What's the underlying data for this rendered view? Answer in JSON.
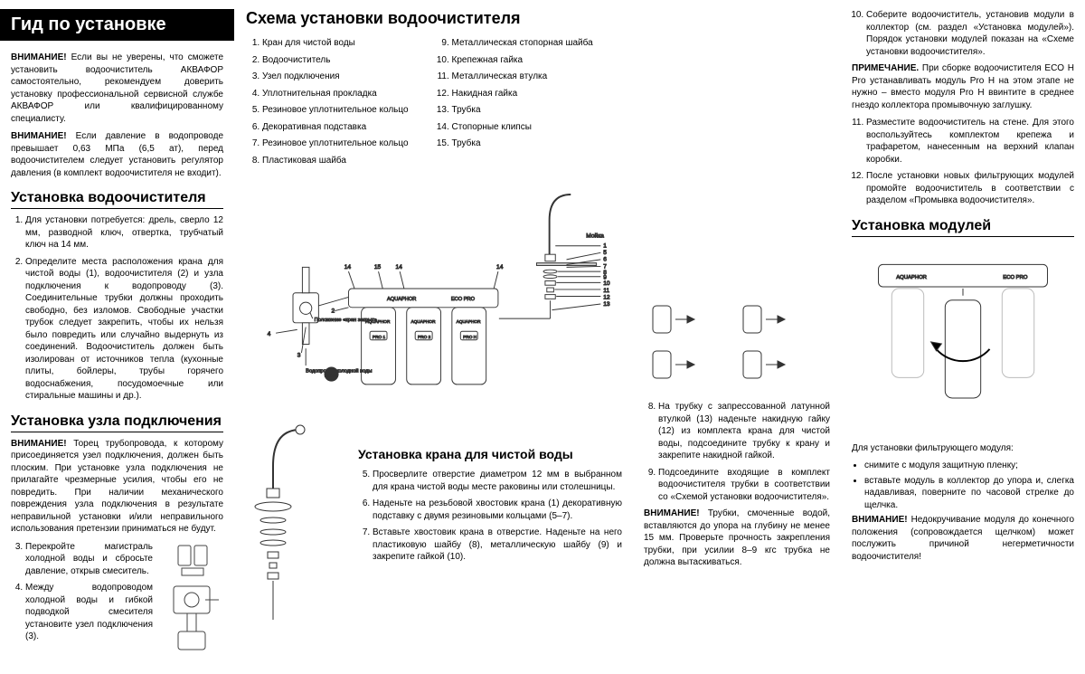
{
  "col1": {
    "title": "Гид по установке",
    "warn1_label": "ВНИМАНИЕ!",
    "warn1": "Если вы не уверены, что сможете установить водоочиститель АКВАФОР самостоятельно, рекомендуем доверить установку профессиональной сервисной службе АКВАФОР или квалифицированному специалисту.",
    "warn2_label": "ВНИМАНИЕ!",
    "warn2": "Если давление в водопроводе превышает 0,63 МПа (6,5 ат), перед водоочистителем следует установить регулятор давления (в комплект водоочистителя не входит).",
    "h_install": "Установка водоочистителя",
    "step1": "Для установки потребуется: дрель, сверло 12 мм, разводной ключ, отвертка, трубчатый ключ на 14 мм.",
    "step2": "Определите места расположения крана для чистой воды (1), водоочистителя (2) и узла подключения к водопроводу (3). Соединительные трубки должны проходить свободно, без изломов. Свободные участки трубок следует закрепить, чтобы их нельзя было повредить или случайно выдернуть из соединений. Водоочиститель должен быть изолирован от источников тепла (кухонные плиты, бойлеры, трубы горячего водоснабжения, посудомоечные или стиральные машины и др.).",
    "h_node": "Установка узла подключения",
    "warn3_label": "ВНИМАНИЕ!",
    "warn3": "Торец трубопровода, к которому присоединяется узел подключения, должен быть плоским. При установке узла подключения не прилагайте чрезмерные усилия, чтобы его не повредить. При наличии механического повреждения узла подключения в результате неправильной установки и/или неправильного использования претензии приниматься не будут.",
    "step3": "Перекройте магистраль холодной воды и сбросьте давление, открыв смеситель.",
    "step4": "Между водопроводом холодной воды и гибкой подводкой смесителя установите узел подключения (3)."
  },
  "col2": {
    "title": "Схема установки водоочистителя",
    "parts_a": [
      "Кран для чистой воды",
      "Водоочиститель",
      "Узел подключения",
      "Уплотнительная прокладка",
      "Резиновое уплотнительное кольцо",
      "Декоративная подставка",
      "Резиновое уплотнительное кольцо",
      "Пластиковая шайба"
    ],
    "parts_b_start": 9,
    "parts_b": [
      "Металлическая стопорная шайба",
      "Крепежная гайка",
      "Металлическая втулка",
      "Накидная гайка",
      "Трубка",
      "Стопорные клипсы",
      "Трубка"
    ],
    "dia": {
      "brand": "AQUAPHOR",
      "model": "ECO PRO",
      "cart1": "PRO 1",
      "cart2": "PRO 2",
      "cart3": "PRO H",
      "pos_closed": "Положение «кран закрыт»",
      "coldwater": "Водопровод холодной воды",
      "sink": "Мойка"
    },
    "h_tap": "Установка крана для чистой воды",
    "tap5": "Просверлите отверстие диаметром 12 мм в выбранном для крана чистой воды месте раковины или столешницы.",
    "tap6": "Наденьте на резьбовой хвостовик крана (1) декоративную подставку с двумя резиновыми кольцами (5–7).",
    "tap7": "Вставьте хвостовик крана в отверстие. Наденьте на него пластиковую шайбу (8), металлическую шайбу (9) и закрепите гайкой (10)."
  },
  "col3": {
    "step8": "На трубку с запрессованной латунной втулкой (13) наденьте накидную гайку (12) из комплекта крана для чистой воды, подсоедините трубку к крану и закрепите накидной гайкой.",
    "step9": "Подсоедините входящие в комплект водоочистителя трубки в соответствии со «Схемой установки водоочистителя».",
    "warn_label": "ВНИМАНИЕ!",
    "warn": "Трубки, смоченные водой, вставляются до упора на глубину не менее 15 мм. Проверьте прочность закрепления трубки, при усилии 8–9 кгс трубка не должна вытаскиваться."
  },
  "col4": {
    "step10": "Соберите водоочиститель, установив модули в коллектор (см. раздел «Установка модулей»). Порядок установки модулей показан на «Схеме установки водоочистителя».",
    "note_label": "ПРИМЕЧАНИЕ.",
    "note": "При сборке водоочистителя ECO H Pro устанавливать модуль Pro H на этом этапе не нужно – вместо модуля Pro H ввинтите в среднее гнездо коллектора промывочную заглушку.",
    "step11": "Разместите водоочиститель на стене. Для этого воспользуйтесь комплектом крепежа и трафаретом, нанесенным на верхний клапан коробки.",
    "step12": "После установки новых фильтрующих модулей промойте водоочиститель в соответствии с разделом «Промывка водоочистителя».",
    "h_modules": "Установка модулей",
    "mod_intro": "Для установки фильтрующего модуля:",
    "mod_b1": "снимите с модуля защитную пленку;",
    "mod_b2": "вставьте модуль в коллектор до упора и, слегка надавливая, поверните по часовой стрелке до щелчка.",
    "warn_label": "ВНИМАНИЕ!",
    "warn": "Недокручивание модуля до конечного положения (сопровождается щелчком) может послужить причиной негерметичности водоочистителя!"
  },
  "colors": {
    "text": "#000000",
    "bg": "#ffffff",
    "line": "#000000",
    "ill_stroke": "#444444"
  }
}
